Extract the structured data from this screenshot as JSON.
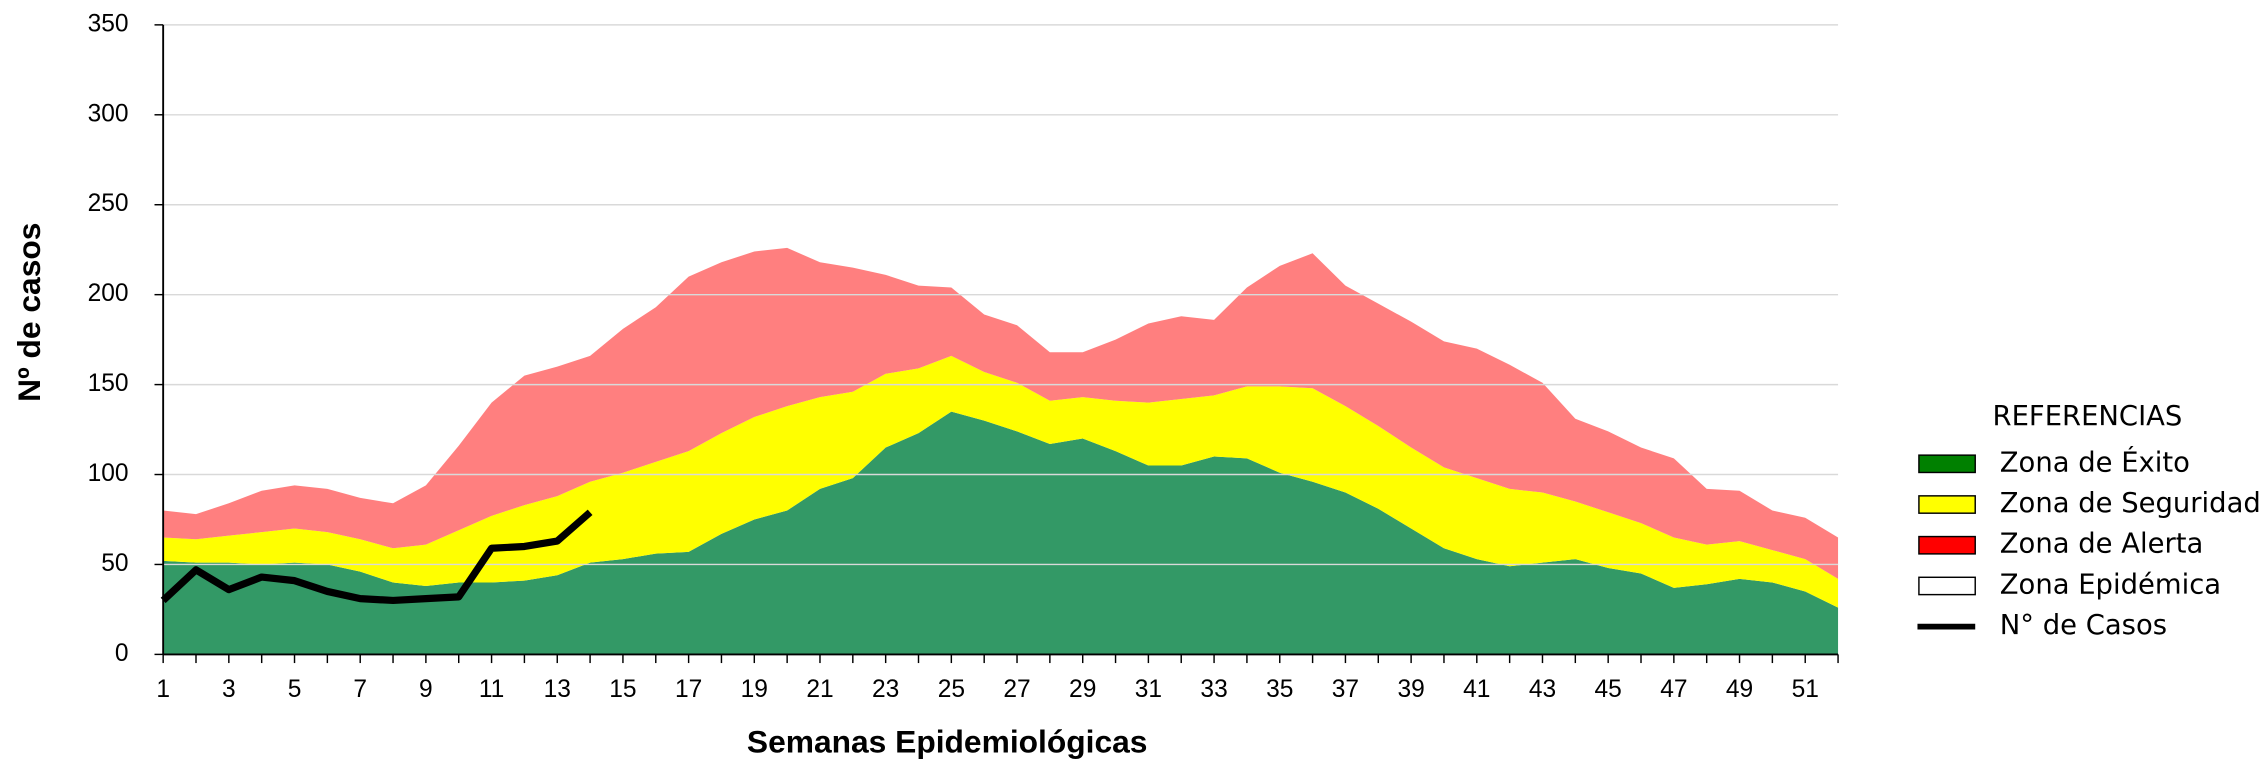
{
  "chart_data": {
    "type": "area",
    "stacked": true,
    "x_label": "Semanas Epidemiológicas",
    "y_label": "Nº de casos",
    "legend_title": "REFERENCIAS",
    "legend_position": "right",
    "grid": true,
    "categories": [
      1,
      null,
      3,
      null,
      5,
      null,
      7,
      null,
      9,
      null,
      11,
      null,
      13,
      null,
      15,
      null,
      17,
      null,
      19,
      null,
      21,
      null,
      23,
      null,
      25,
      null,
      27,
      null,
      29,
      null,
      31,
      null,
      33,
      null,
      35,
      null,
      37,
      null,
      39,
      null,
      41,
      null,
      43,
      null,
      45,
      null,
      47,
      null,
      49,
      null,
      51,
      null
    ],
    "ylim": [
      0,
      350
    ],
    "yticks": [
      0,
      50,
      100,
      150,
      200,
      250,
      300,
      350
    ],
    "series": [
      {
        "name": "Zona de Éxito",
        "color": "#339966",
        "legend_color": "#008000",
        "kind": "area",
        "values": [
          52,
          51,
          51,
          50,
          51,
          50,
          46,
          40,
          38,
          40,
          40,
          41,
          44,
          51,
          53,
          56,
          57,
          67,
          75,
          80,
          92,
          98,
          115,
          123,
          135,
          130,
          124,
          117,
          120,
          113,
          105,
          105,
          110,
          109,
          101,
          96,
          90,
          81,
          70,
          59,
          53,
          49,
          51,
          53,
          48,
          45,
          37,
          39,
          42,
          40,
          35,
          26
        ]
      },
      {
        "name": "Zona de Seguridad",
        "color": "#ffff00",
        "legend_color": "#ffff00",
        "kind": "area",
        "values": [
          13,
          13,
          15,
          18,
          19,
          18,
          18,
          19,
          23,
          29,
          37,
          42,
          44,
          45,
          48,
          51,
          56,
          56,
          57,
          58,
          51,
          48,
          41,
          36,
          31,
          27,
          27,
          24,
          23,
          28,
          35,
          37,
          34,
          40,
          48,
          52,
          48,
          46,
          45,
          45,
          45,
          43,
          39,
          32,
          31,
          28,
          28,
          22,
          21,
          18,
          18,
          16
        ]
      },
      {
        "name": "Zona de Alerta",
        "color": "#ff7f7f",
        "legend_color": "#ff0000",
        "kind": "area",
        "values": [
          15,
          14,
          18,
          23,
          24,
          24,
          23,
          25,
          33,
          47,
          63,
          72,
          72,
          70,
          80,
          86,
          97,
          95,
          92,
          88,
          75,
          69,
          55,
          46,
          38,
          32,
          32,
          27,
          25,
          34,
          44,
          46,
          42,
          55,
          67,
          75,
          67,
          68,
          70,
          70,
          72,
          69,
          61,
          46,
          45,
          42,
          44,
          31,
          28,
          22,
          23,
          23
        ]
      },
      {
        "name": "Zona Epidémica",
        "color": "#ffffff",
        "legend_color": "#ffffff",
        "kind": "area"
      },
      {
        "name": "N° de Casos",
        "color": "#000000",
        "legend_color": "#000000",
        "kind": "line",
        "values": [
          30,
          47,
          36,
          43,
          41,
          35,
          31,
          30,
          31,
          32,
          59,
          60,
          63,
          79,
          null,
          null,
          null,
          null,
          null,
          null,
          null,
          null,
          null,
          null,
          null,
          null,
          null,
          null,
          null,
          null,
          null,
          null,
          null,
          null,
          null,
          null,
          null,
          null,
          null,
          null,
          null,
          null,
          null,
          null,
          null,
          null,
          null,
          null,
          null,
          null,
          null,
          null
        ]
      }
    ]
  }
}
